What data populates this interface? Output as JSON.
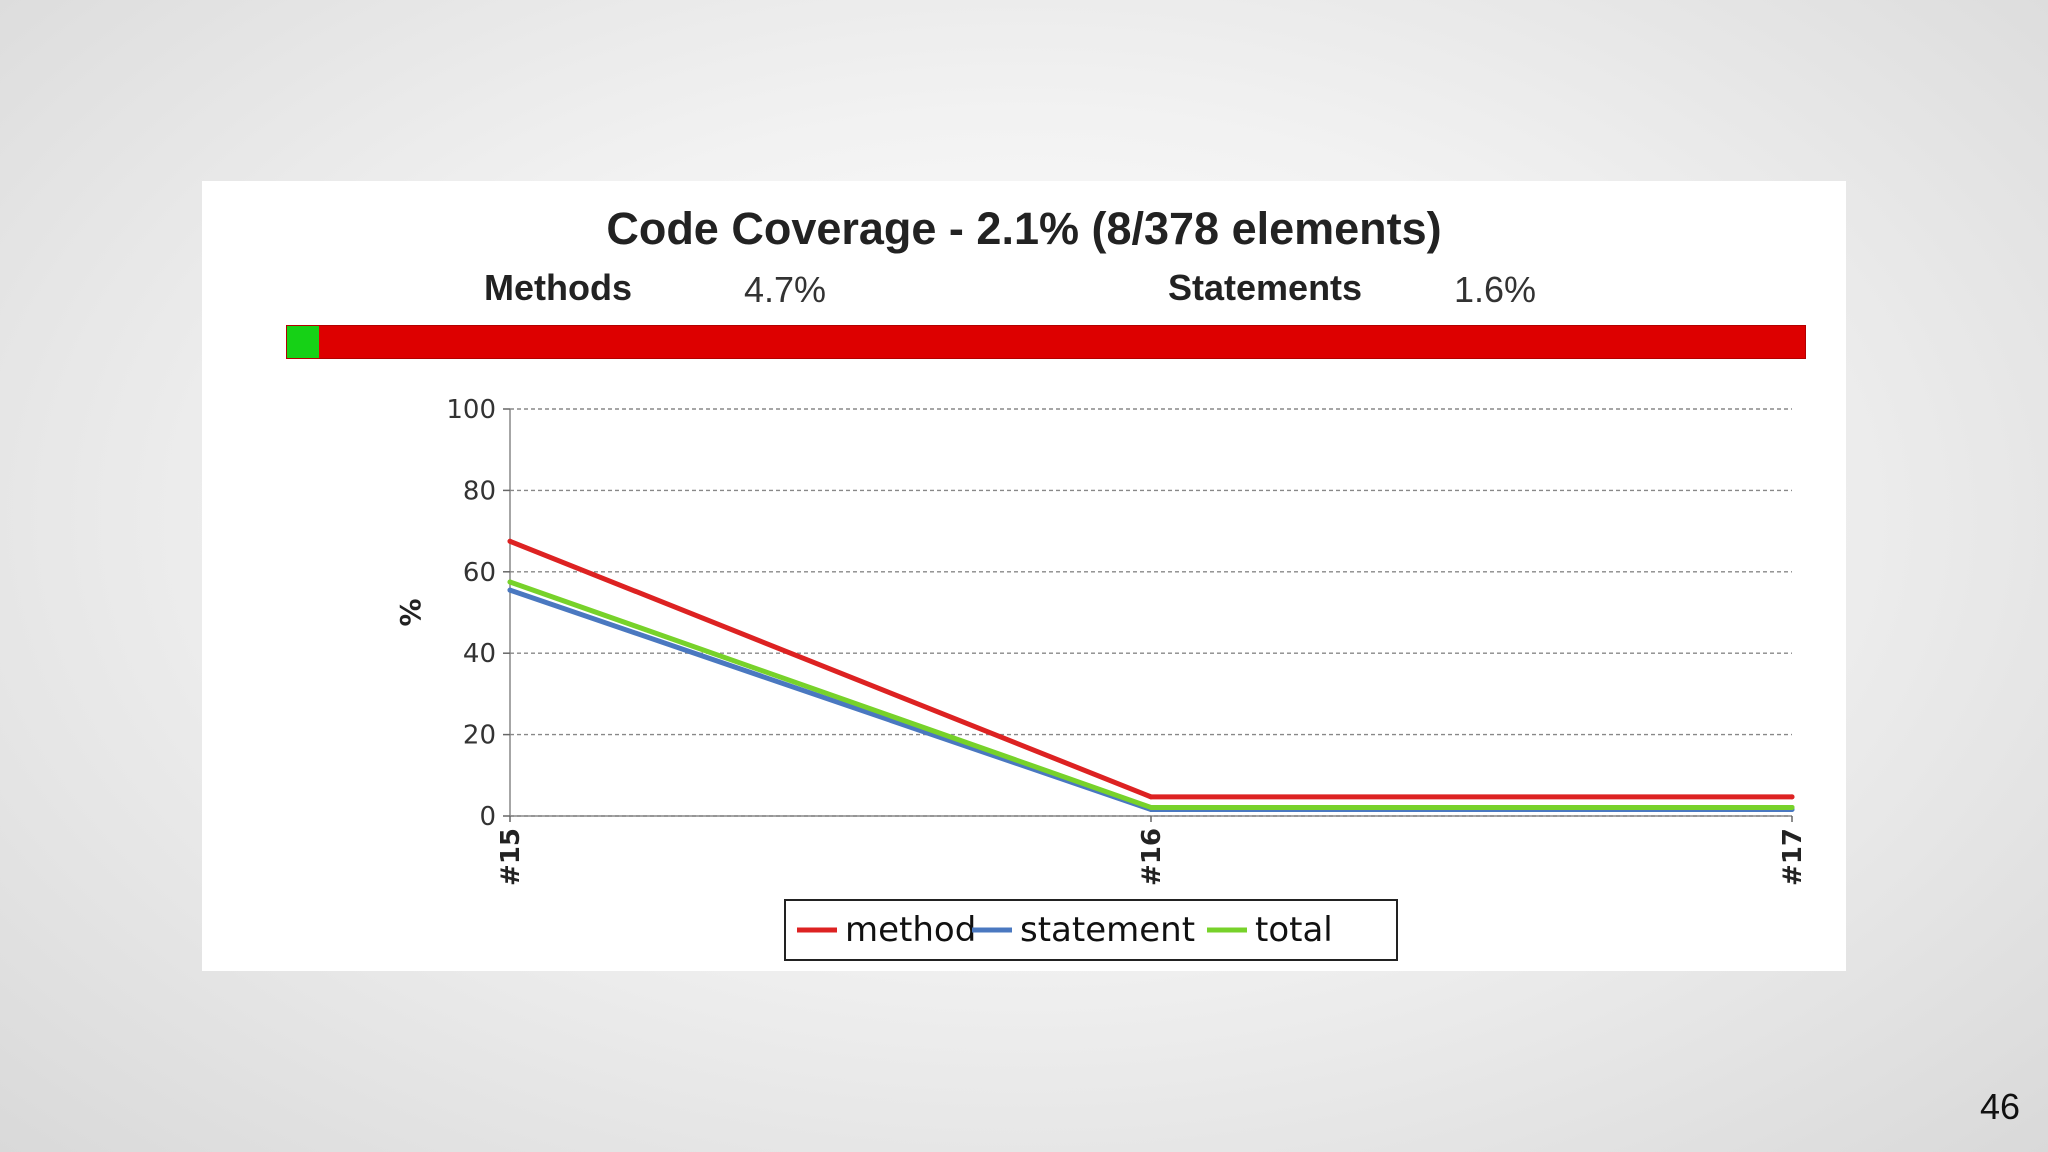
{
  "slide": {
    "page_number": "46"
  },
  "coverage": {
    "title": "Code Coverage - 2.1% (8/378 elements)",
    "methods_label": "Methods",
    "methods_value": "4.7%",
    "statements_label": "Statements",
    "statements_value": "1.6%",
    "covered_elements": 8,
    "total_elements": 378,
    "colors": {
      "covered": "#16d116",
      "uncovered": "#dd0000"
    }
  },
  "chart_data": {
    "type": "line",
    "title": "",
    "xlabel": "",
    "ylabel": "%",
    "categories": [
      "#15",
      "#16",
      "#17"
    ],
    "ylim": [
      0,
      100
    ],
    "yticks": [
      0,
      20,
      40,
      60,
      80,
      100
    ],
    "grid": true,
    "legend_position": "bottom-center",
    "series": [
      {
        "name": "method",
        "values": [
          67.5,
          4.7,
          4.7
        ],
        "color": "#dd2222"
      },
      {
        "name": "statement",
        "values": [
          55.5,
          1.6,
          1.6
        ],
        "color": "#4a78c0"
      },
      {
        "name": "total",
        "values": [
          57.5,
          2.1,
          2.1
        ],
        "color": "#77d22a"
      }
    ]
  }
}
